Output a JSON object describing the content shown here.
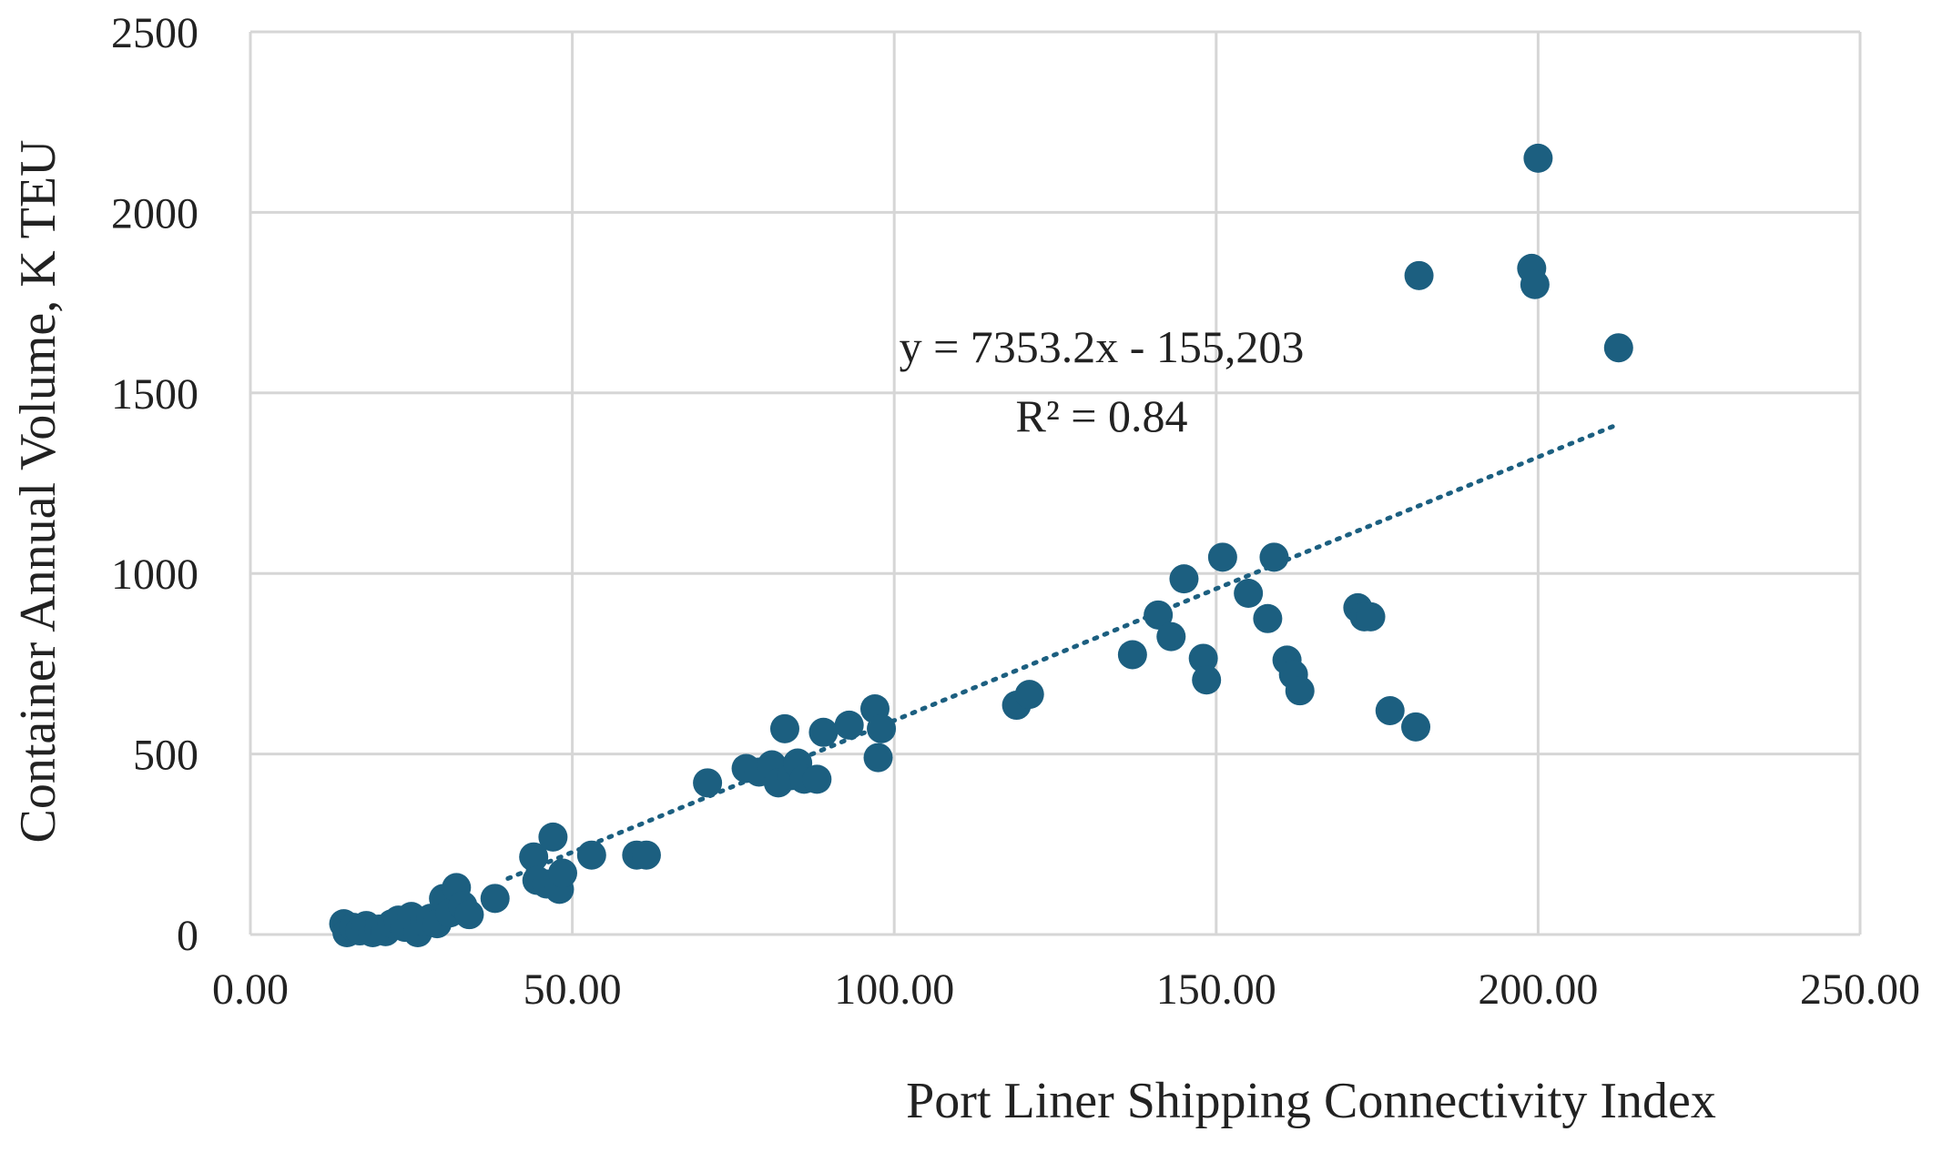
{
  "chart_data": {
    "type": "scatter",
    "title": "",
    "xlabel": "Port Liner Shipping Connectivity Index",
    "ylabel": "Container Annual Volume, K TEU",
    "xlim": [
      0,
      250
    ],
    "ylim": [
      0,
      2500
    ],
    "x_ticks": [
      "0.00",
      "50.00",
      "100.00",
      "150.00",
      "200.00",
      "250.00"
    ],
    "y_ticks": [
      "0",
      "500",
      "1000",
      "1500",
      "2000",
      "2500"
    ],
    "grid": true,
    "legend": "none",
    "marker_color": "#1c5f80",
    "trendline_color": "#1c5f80",
    "equation": "y = 7353.2x - 155,203",
    "r_squared": "R² = 0.84",
    "trendline": {
      "x": [
        40,
        212
      ],
      "y": [
        155,
        1410
      ]
    },
    "points": [
      {
        "x": 14.5,
        "y": 30
      },
      {
        "x": 15,
        "y": 5
      },
      {
        "x": 16,
        "y": 20
      },
      {
        "x": 17,
        "y": 10
      },
      {
        "x": 18,
        "y": 25
      },
      {
        "x": 19,
        "y": 5
      },
      {
        "x": 20,
        "y": 15
      },
      {
        "x": 21,
        "y": 8
      },
      {
        "x": 22,
        "y": 30
      },
      {
        "x": 23,
        "y": 40
      },
      {
        "x": 24,
        "y": 20
      },
      {
        "x": 25,
        "y": 50
      },
      {
        "x": 26,
        "y": 5
      },
      {
        "x": 27,
        "y": 35
      },
      {
        "x": 28,
        "y": 45
      },
      {
        "x": 29,
        "y": 30
      },
      {
        "x": 30,
        "y": 100
      },
      {
        "x": 31,
        "y": 60
      },
      {
        "x": 32,
        "y": 130
      },
      {
        "x": 33,
        "y": 80
      },
      {
        "x": 34,
        "y": 55
      },
      {
        "x": 38,
        "y": 100
      },
      {
        "x": 44,
        "y": 215
      },
      {
        "x": 44.5,
        "y": 150
      },
      {
        "x": 46,
        "y": 140
      },
      {
        "x": 47,
        "y": 270
      },
      {
        "x": 48,
        "y": 125
      },
      {
        "x": 48.5,
        "y": 170
      },
      {
        "x": 53,
        "y": 220
      },
      {
        "x": 60,
        "y": 220
      },
      {
        "x": 61.5,
        "y": 220
      },
      {
        "x": 71,
        "y": 420
      },
      {
        "x": 77,
        "y": 460
      },
      {
        "x": 79,
        "y": 450
      },
      {
        "x": 81,
        "y": 470
      },
      {
        "x": 82,
        "y": 420
      },
      {
        "x": 83,
        "y": 570
      },
      {
        "x": 84,
        "y": 440
      },
      {
        "x": 85,
        "y": 475
      },
      {
        "x": 86,
        "y": 430
      },
      {
        "x": 88,
        "y": 430
      },
      {
        "x": 89,
        "y": 560
      },
      {
        "x": 93,
        "y": 580
      },
      {
        "x": 97,
        "y": 625
      },
      {
        "x": 97.5,
        "y": 490
      },
      {
        "x": 98,
        "y": 570
      },
      {
        "x": 119,
        "y": 635
      },
      {
        "x": 121,
        "y": 665
      },
      {
        "x": 137,
        "y": 775
      },
      {
        "x": 141,
        "y": 885
      },
      {
        "x": 143,
        "y": 825
      },
      {
        "x": 145,
        "y": 985
      },
      {
        "x": 148,
        "y": 765
      },
      {
        "x": 148.5,
        "y": 705
      },
      {
        "x": 151,
        "y": 1045
      },
      {
        "x": 155,
        "y": 945
      },
      {
        "x": 158,
        "y": 875
      },
      {
        "x": 159,
        "y": 1045
      },
      {
        "x": 161,
        "y": 760
      },
      {
        "x": 162,
        "y": 720
      },
      {
        "x": 163,
        "y": 675
      },
      {
        "x": 172,
        "y": 905
      },
      {
        "x": 173,
        "y": 880
      },
      {
        "x": 174,
        "y": 880
      },
      {
        "x": 177,
        "y": 620
      },
      {
        "x": 181,
        "y": 575
      },
      {
        "x": 181.5,
        "y": 1825
      },
      {
        "x": 199,
        "y": 1845
      },
      {
        "x": 199.5,
        "y": 1800
      },
      {
        "x": 200,
        "y": 2150
      },
      {
        "x": 212.5,
        "y": 1625
      }
    ]
  }
}
